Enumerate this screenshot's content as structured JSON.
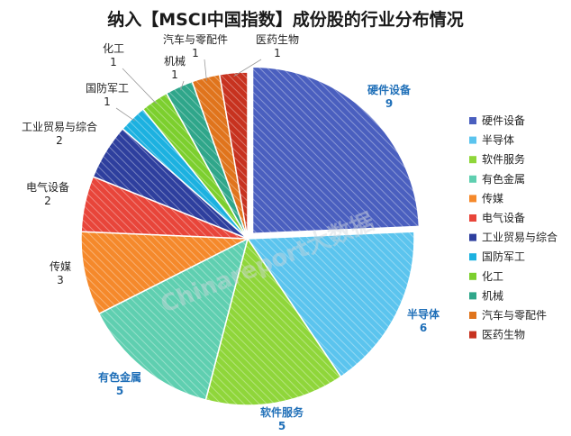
{
  "chart_data": {
    "type": "pie",
    "title": "纳入【MSCI中国指数】成份股的行业分布情况",
    "watermark": "Chinareport大数据",
    "legend_position": "right",
    "categories": [
      "硬件设备",
      "半导体",
      "软件服务",
      "有色金属",
      "传媒",
      "电气设备",
      "工业贸易与综合",
      "国防军工",
      "化工",
      "机械",
      "汽车与零配件",
      "医药生物"
    ],
    "values": [
      9,
      6,
      5,
      5,
      3,
      2,
      2,
      1,
      1,
      1,
      1,
      1
    ],
    "colors": [
      "#4a5fbf",
      "#5bc4ee",
      "#8fd63a",
      "#5fcfb0",
      "#f5892b",
      "#e8453a",
      "#2e3f9e",
      "#1cb1e0",
      "#7ccf2e",
      "#2fa68a",
      "#e0741c",
      "#c7321f"
    ],
    "value_labels": [
      "9",
      "6",
      "5",
      "5",
      "3",
      "2",
      "2",
      "1",
      "1",
      "1",
      "1",
      "1"
    ]
  }
}
